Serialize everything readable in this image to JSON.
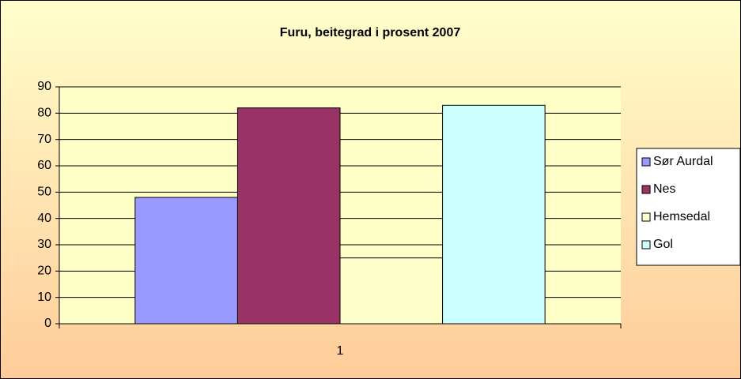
{
  "chart_data": {
    "type": "bar",
    "title": "Furu, beitegrad i prosent 2007",
    "categories": [
      "1"
    ],
    "series": [
      {
        "name": "Sør Aurdal",
        "color": "#9999ff",
        "values": [
          48
        ]
      },
      {
        "name": "Nes",
        "color": "#993366",
        "values": [
          82
        ]
      },
      {
        "name": "Hemsedal",
        "color": "#ffffcc",
        "values": [
          25
        ]
      },
      {
        "name": "Gol",
        "color": "#ccffff",
        "values": [
          83
        ]
      }
    ],
    "ylim": [
      0,
      90
    ],
    "yticks": [
      0,
      10,
      20,
      30,
      40,
      50,
      60,
      70,
      80,
      90
    ],
    "grid": true,
    "legend": "right"
  }
}
